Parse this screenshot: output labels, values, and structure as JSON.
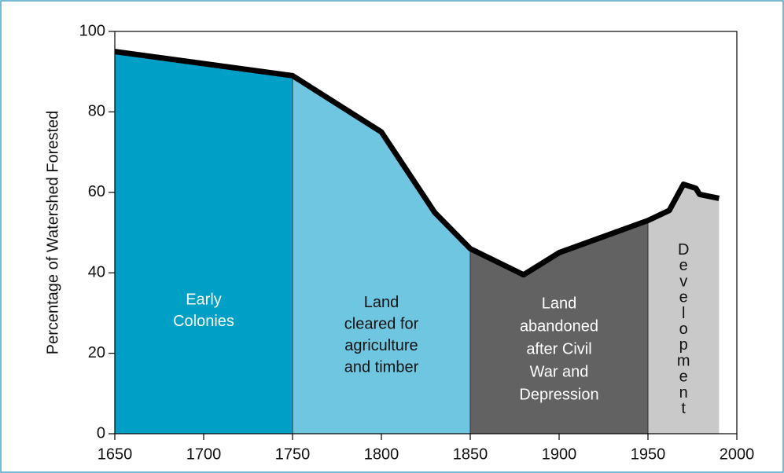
{
  "chart_data": {
    "type": "area",
    "ylabel": "Percentage of Watershed Forested",
    "x": [
      1650,
      1750,
      1800,
      1830,
      1850,
      1880,
      1900,
      1950,
      1962,
      1970,
      1977,
      1979,
      1990
    ],
    "values": [
      95,
      89,
      75,
      55,
      46,
      39.5,
      45,
      53,
      55.5,
      62,
      61,
      59.5,
      58.5
    ],
    "line_color": "#000000",
    "xlim": [
      1650,
      2000
    ],
    "xticks": [
      1650,
      1700,
      1750,
      1800,
      1850,
      1900,
      1950,
      2000
    ],
    "ylim": [
      0,
      100
    ],
    "yticks": [
      0,
      20,
      40,
      60,
      80,
      100
    ],
    "regions": [
      {
        "start": 1650,
        "end": 1750,
        "label": [
          "Early",
          "Colonies"
        ],
        "color": "#00a0c6",
        "text_color": "#ffffff"
      },
      {
        "start": 1750,
        "end": 1850,
        "label": [
          "Land",
          "cleared for",
          "agriculture",
          "and timber"
        ],
        "color": "#6ec6e0",
        "text_color": "#111111"
      },
      {
        "start": 1850,
        "end": 1950,
        "label": [
          "Land",
          "abandoned",
          "after Civil",
          "War and",
          "Depression"
        ],
        "color": "#626262",
        "text_color": "#ffffff"
      },
      {
        "start": 1950,
        "end": 1990,
        "label": [
          "Development"
        ],
        "vertical": true,
        "color": "#c9c9c9",
        "text_color": "#111111"
      }
    ]
  }
}
